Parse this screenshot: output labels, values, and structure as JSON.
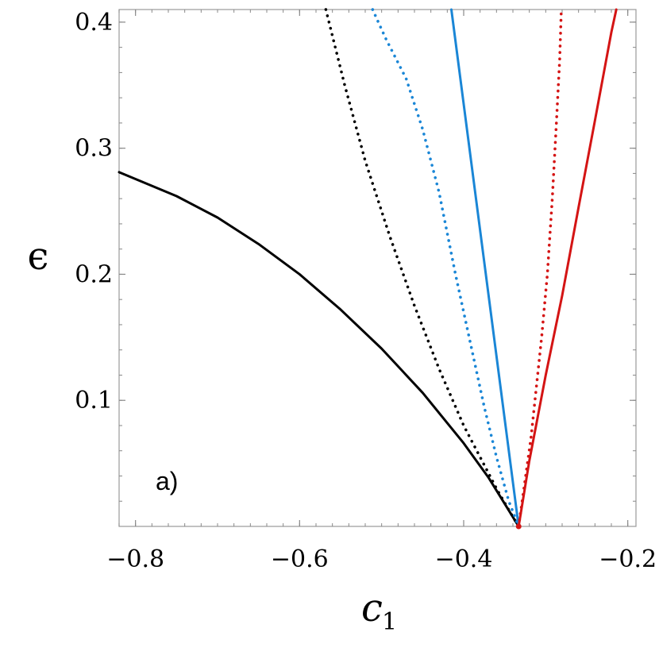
{
  "chart_data": {
    "type": "line",
    "panel_label": "a)",
    "xlabel": "c",
    "xlabel_sub": "1",
    "ylabel": "ϵ",
    "xlim": [
      -0.82,
      -0.19
    ],
    "ylim": [
      0.0,
      0.41
    ],
    "xticks": [
      {
        "value": -0.8,
        "label": "−0.8"
      },
      {
        "value": -0.6,
        "label": "−0.6"
      },
      {
        "value": -0.4,
        "label": "−0.4"
      },
      {
        "value": -0.2,
        "label": "−0.2"
      }
    ],
    "yticks": [
      {
        "value": 0.1,
        "label": "0.1"
      },
      {
        "value": 0.2,
        "label": "0.2"
      },
      {
        "value": 0.3,
        "label": "0.3"
      },
      {
        "value": 0.4,
        "label": "0.4"
      }
    ],
    "grid": false,
    "series": [
      {
        "color": "#000000",
        "style": "solid",
        "x": [
          -0.82,
          -0.75,
          -0.7,
          -0.65,
          -0.6,
          -0.55,
          -0.5,
          -0.45,
          -0.4,
          -0.37,
          -0.35,
          -0.333
        ],
        "y": [
          0.281,
          0.262,
          0.245,
          0.224,
          0.2,
          0.172,
          0.141,
          0.106,
          0.066,
          0.039,
          0.018,
          0.0
        ]
      },
      {
        "color": "#000000",
        "style": "dotted",
        "x": [
          -0.568,
          -0.545,
          -0.52,
          -0.49,
          -0.46,
          -0.43,
          -0.4,
          -0.38,
          -0.36,
          -0.345,
          -0.333
        ],
        "y": [
          0.41,
          0.35,
          0.29,
          0.23,
          0.175,
          0.125,
          0.08,
          0.055,
          0.03,
          0.013,
          0.0
        ]
      },
      {
        "color": "#1a86d6",
        "style": "dotted",
        "x": [
          -0.511,
          -0.495,
          -0.47,
          -0.45,
          -0.43,
          -0.41,
          -0.39,
          -0.375,
          -0.36,
          -0.345,
          -0.333
        ],
        "y": [
          0.41,
          0.387,
          0.355,
          0.315,
          0.265,
          0.2,
          0.14,
          0.095,
          0.055,
          0.02,
          0.0
        ]
      },
      {
        "color": "#1a86d6",
        "style": "solid",
        "x": [
          -0.415,
          -0.333
        ],
        "y": [
          0.41,
          0.0
        ]
      },
      {
        "color": "#d41414",
        "style": "dotted",
        "x": [
          -0.333,
          -0.318,
          -0.305,
          -0.298,
          -0.292,
          -0.287,
          -0.283,
          -0.281
        ],
        "y": [
          0.0,
          0.07,
          0.15,
          0.2,
          0.26,
          0.32,
          0.37,
          0.41
        ]
      },
      {
        "color": "#d41414",
        "style": "solid",
        "x": [
          -0.333,
          -0.32,
          -0.3,
          -0.28,
          -0.26,
          -0.24,
          -0.22,
          -0.214
        ],
        "y": [
          0.0,
          0.052,
          0.12,
          0.183,
          0.253,
          0.322,
          0.392,
          0.41
        ]
      }
    ]
  }
}
